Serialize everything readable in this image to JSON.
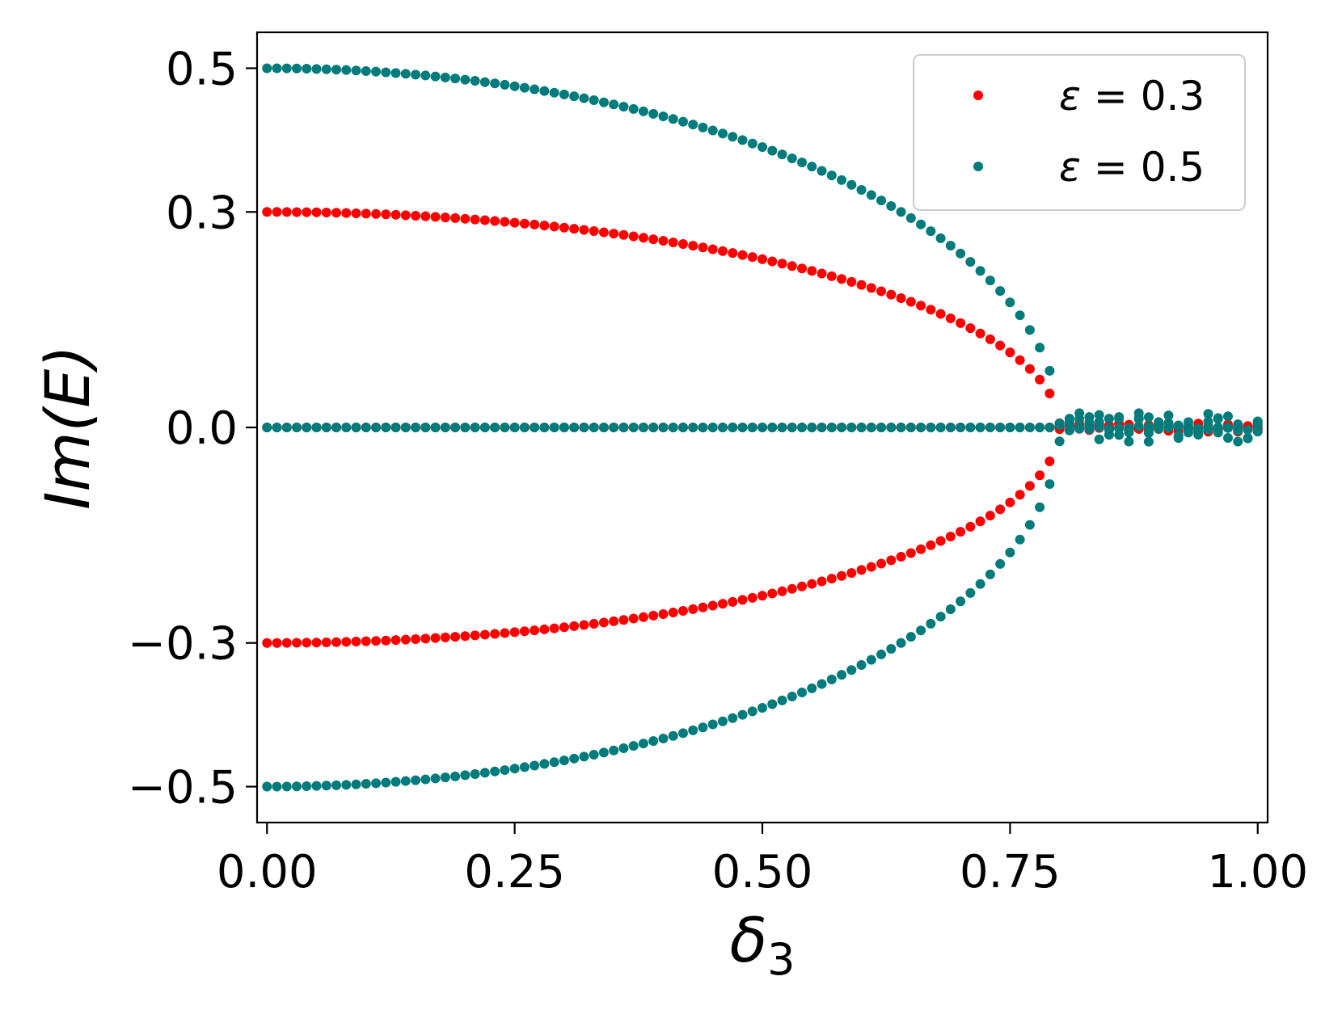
{
  "chart_data": {
    "type": "scatter",
    "xlabel": "δ",
    "xlabel_sub": "3",
    "ylabel": "Im(E)",
    "xlim": [
      -0.01,
      1.01
    ],
    "ylim": [
      -0.55,
      0.55
    ],
    "xticks": [
      0.0,
      0.25,
      0.5,
      0.75,
      1.0
    ],
    "xtick_labels": [
      "0.00",
      "0.25",
      "0.50",
      "0.75",
      "1.00"
    ],
    "yticks": [
      -0.5,
      -0.3,
      0.0,
      0.3,
      0.5
    ],
    "ytick_labels": [
      "−0.5",
      "−0.3",
      "0.0",
      "0.3",
      "0.5"
    ],
    "legend_position": "top-right",
    "grid": false,
    "series": [
      {
        "name": "ε = 0.3",
        "legend_symbol": "ε",
        "legend_value": " = 0.3",
        "color": "#ff0000",
        "epsilon": 0.3,
        "model": "Im(E) = ±0.3·sqrt(1 − (δ3/0.8)^2) for δ3 < 0.8, ≈ 0 beyond; plus a branch at Im(E) = 0",
        "x_range": [
          0.0,
          1.0
        ],
        "exceptional_point": 0.8
      },
      {
        "name": "ε = 0.5",
        "legend_symbol": "ε",
        "legend_value": " = 0.5",
        "color": "#007b7b",
        "epsilon": 0.5,
        "model": "Im(E) = ±0.5·sqrt(1 − (δ3/0.8)^2) for δ3 < 0.8, scattered near 0 (|Im E| ≤ 0.02) beyond; plus a branch at Im(E) = 0",
        "x_range": [
          0.0,
          1.0
        ],
        "exceptional_point": 0.8
      }
    ],
    "sample_points": {
      "eps_0.5_upper": [
        [
          0.0,
          0.5
        ],
        [
          0.25,
          0.475
        ],
        [
          0.5,
          0.39
        ],
        [
          0.7,
          0.24
        ],
        [
          0.78,
          0.11
        ],
        [
          0.8,
          0.0
        ]
      ],
      "eps_0.3_upper": [
        [
          0.0,
          0.3
        ],
        [
          0.25,
          0.285
        ],
        [
          0.5,
          0.234
        ],
        [
          0.7,
          0.145
        ],
        [
          0.78,
          0.067
        ],
        [
          0.8,
          0.0
        ]
      ]
    }
  }
}
